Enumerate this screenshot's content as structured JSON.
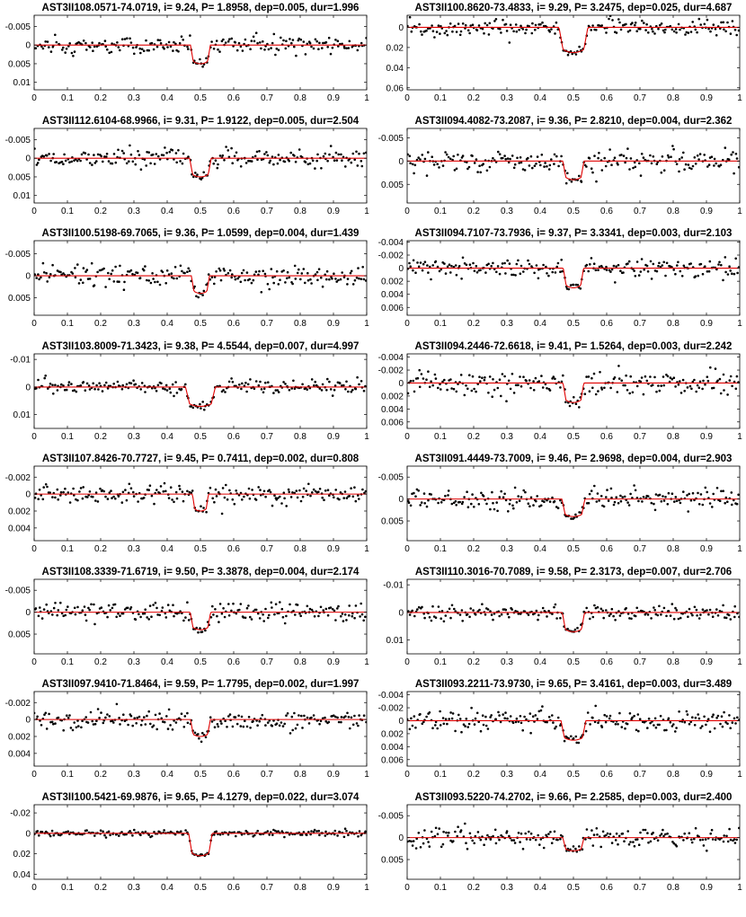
{
  "figure": {
    "columns": 2,
    "rows": 8
  },
  "chart_data": [
    {
      "type": "scatter",
      "title": "AST3II108.0571-74.0719, i= 9.24, P= 1.8958, dep=0.005, dur=1.996",
      "depth": 0.005,
      "duration": 1.996,
      "noise": 0.0012,
      "seed": 11,
      "xlim": [
        0,
        1
      ],
      "ylim": [
        -0.008,
        0.012
      ],
      "y_reversed": true,
      "y_ticks": [
        "-0.005",
        "0",
        "0.005",
        "0.01"
      ],
      "y_tick_values": [
        -0.005,
        0,
        0.005,
        0.01
      ],
      "x_ticks": [
        "0",
        "0.1",
        "0.2",
        "0.3",
        "0.4",
        "0.5",
        "0.6",
        "0.7",
        "0.8",
        "0.9",
        "1"
      ],
      "model_color": "#e00000",
      "point_color": "#000000"
    },
    {
      "type": "scatter",
      "title": "AST3II100.8620-73.4833, i= 9.29, P= 3.2475, dep=0.025, dur=4.687",
      "depth": 0.025,
      "duration": 4.687,
      "noise": 0.004,
      "seed": 12,
      "xlim": [
        0,
        1
      ],
      "ylim": [
        -0.012,
        0.062
      ],
      "y_reversed": true,
      "y_ticks": [
        "0",
        "0.02",
        "0.04",
        "0.06"
      ],
      "y_tick_values": [
        0,
        0.02,
        0.04,
        0.06
      ],
      "x_ticks": [
        "0",
        "0.1",
        "0.2",
        "0.3",
        "0.4",
        "0.5",
        "0.6",
        "0.7",
        "0.8",
        "0.9",
        "1"
      ],
      "model_color": "#e00000",
      "point_color": "#000000"
    },
    {
      "type": "scatter",
      "title": "AST3II112.6104-68.9966, i= 9.31, P= 1.9122, dep=0.005, dur=2.504",
      "depth": 0.005,
      "duration": 2.504,
      "noise": 0.0012,
      "seed": 13,
      "xlim": [
        0,
        1
      ],
      "ylim": [
        -0.008,
        0.012
      ],
      "y_reversed": true,
      "y_ticks": [
        "-0.005",
        "0",
        "0.005",
        "0.01"
      ],
      "y_tick_values": [
        -0.005,
        0,
        0.005,
        0.01
      ],
      "x_ticks": [
        "0",
        "0.1",
        "0.2",
        "0.3",
        "0.4",
        "0.5",
        "0.6",
        "0.7",
        "0.8",
        "0.9",
        "1"
      ],
      "model_color": "#e00000",
      "point_color": "#000000"
    },
    {
      "type": "scatter",
      "title": "AST3II094.4082-73.2087, i= 9.36, P= 2.8210, dep=0.004, dur=2.362",
      "depth": 0.004,
      "duration": 2.362,
      "noise": 0.0012,
      "seed": 14,
      "xlim": [
        0,
        1
      ],
      "ylim": [
        -0.007,
        0.009
      ],
      "y_reversed": true,
      "y_ticks": [
        "-0.005",
        "0",
        "0.005"
      ],
      "y_tick_values": [
        -0.005,
        0,
        0.005
      ],
      "x_ticks": [
        "0",
        "0.1",
        "0.2",
        "0.3",
        "0.4",
        "0.5",
        "0.6",
        "0.7",
        "0.8",
        "0.9",
        "1"
      ],
      "model_color": "#e00000",
      "point_color": "#000000"
    },
    {
      "type": "scatter",
      "title": "AST3II100.5198-69.7065, i= 9.36, P= 1.0599, dep=0.004, dur=1.439",
      "depth": 0.004,
      "duration": 1.439,
      "noise": 0.0012,
      "seed": 15,
      "xlim": [
        0,
        1
      ],
      "ylim": [
        -0.008,
        0.009
      ],
      "y_reversed": true,
      "y_ticks": [
        "-0.005",
        "0",
        "0.005"
      ],
      "y_tick_values": [
        -0.005,
        0,
        0.005
      ],
      "x_ticks": [
        "0",
        "0.1",
        "0.2",
        "0.3",
        "0.4",
        "0.5",
        "0.6",
        "0.7",
        "0.8",
        "0.9",
        "1"
      ],
      "model_color": "#e00000",
      "point_color": "#000000"
    },
    {
      "type": "scatter",
      "title": "AST3II094.7107-73.7936, i= 9.37, P= 3.3341, dep=0.003, dur=2.103",
      "depth": 0.003,
      "duration": 2.103,
      "noise": 0.0007,
      "seed": 16,
      "xlim": [
        0,
        1
      ],
      "ylim": [
        -0.0042,
        0.0072
      ],
      "y_reversed": true,
      "y_ticks": [
        "-0.004",
        "-0.002",
        "0",
        "0.002",
        "0.004",
        "0.006"
      ],
      "y_tick_values": [
        -0.004,
        -0.002,
        0,
        0.002,
        0.004,
        0.006
      ],
      "x_ticks": [
        "0",
        "0.1",
        "0.2",
        "0.3",
        "0.4",
        "0.5",
        "0.6",
        "0.7",
        "0.8",
        "0.9",
        "1"
      ],
      "model_color": "#e00000",
      "point_color": "#000000"
    },
    {
      "type": "scatter",
      "title": "AST3II103.8009-71.3423, i= 9.38, P= 4.5544, dep=0.007, dur=4.997",
      "depth": 0.007,
      "duration": 4.997,
      "noise": 0.0012,
      "seed": 17,
      "xlim": [
        0,
        1
      ],
      "ylim": [
        -0.012,
        0.015
      ],
      "y_reversed": true,
      "y_ticks": [
        "-0.01",
        "0",
        "0.01"
      ],
      "y_tick_values": [
        -0.01,
        0,
        0.01
      ],
      "x_ticks": [
        "0",
        "0.1",
        "0.2",
        "0.3",
        "0.4",
        "0.5",
        "0.6",
        "0.7",
        "0.8",
        "0.9",
        "1"
      ],
      "model_color": "#e00000",
      "point_color": "#000000"
    },
    {
      "type": "scatter",
      "title": "AST3II094.2446-72.6618, i= 9.41, P= 1.5264, dep=0.003, dur=2.242",
      "depth": 0.003,
      "duration": 2.242,
      "noise": 0.0009,
      "seed": 18,
      "xlim": [
        0,
        1
      ],
      "ylim": [
        -0.0045,
        0.007
      ],
      "y_reversed": true,
      "y_ticks": [
        "-0.004",
        "-0.002",
        "0",
        "0.002",
        "0.004",
        "0.006"
      ],
      "y_tick_values": [
        -0.004,
        -0.002,
        0,
        0.002,
        0.004,
        0.006
      ],
      "x_ticks": [
        "0",
        "0.1",
        "0.2",
        "0.3",
        "0.4",
        "0.5",
        "0.6",
        "0.7",
        "0.8",
        "0.9",
        "1"
      ],
      "model_color": "#e00000",
      "point_color": "#000000"
    },
    {
      "type": "scatter",
      "title": "AST3II107.8426-70.7727, i= 9.45, P= 0.7411, dep=0.002, dur=0.808",
      "depth": 0.002,
      "duration": 0.808,
      "noise": 0.0006,
      "seed": 19,
      "xlim": [
        0,
        1
      ],
      "ylim": [
        -0.0033,
        0.0055
      ],
      "y_reversed": true,
      "y_ticks": [
        "-0.002",
        "0",
        "0.002",
        "0.004"
      ],
      "y_tick_values": [
        -0.002,
        0,
        0.002,
        0.004
      ],
      "x_ticks": [
        "0",
        "0.1",
        "0.2",
        "0.3",
        "0.4",
        "0.5",
        "0.6",
        "0.7",
        "0.8",
        "0.9",
        "1"
      ],
      "model_color": "#e00000",
      "point_color": "#000000"
    },
    {
      "type": "scatter",
      "title": "AST3II091.4449-73.7009, i= 9.46, P= 2.9698, dep=0.004, dur=2.903",
      "depth": 0.004,
      "duration": 2.903,
      "noise": 0.0011,
      "seed": 20,
      "xlim": [
        0,
        1
      ],
      "ylim": [
        -0.0075,
        0.0095
      ],
      "y_reversed": true,
      "y_ticks": [
        "-0.005",
        "0",
        "0.005"
      ],
      "y_tick_values": [
        -0.005,
        0,
        0.005
      ],
      "x_ticks": [
        "0",
        "0.1",
        "0.2",
        "0.3",
        "0.4",
        "0.5",
        "0.6",
        "0.7",
        "0.8",
        "0.9",
        "1"
      ],
      "model_color": "#e00000",
      "point_color": "#000000"
    },
    {
      "type": "scatter",
      "title": "AST3II108.3339-71.6719, i= 9.50, P= 3.3878, dep=0.004, dur=2.174",
      "depth": 0.004,
      "duration": 2.174,
      "noise": 0.0011,
      "seed": 21,
      "xlim": [
        0,
        1
      ],
      "ylim": [
        -0.0075,
        0.0095
      ],
      "y_reversed": true,
      "y_ticks": [
        "-0.005",
        "0",
        "0.005"
      ],
      "y_tick_values": [
        -0.005,
        0,
        0.005
      ],
      "x_ticks": [
        "0",
        "0.1",
        "0.2",
        "0.3",
        "0.4",
        "0.5",
        "0.6",
        "0.7",
        "0.8",
        "0.9",
        "1"
      ],
      "model_color": "#e00000",
      "point_color": "#000000"
    },
    {
      "type": "scatter",
      "title": "AST3II110.3016-70.7089, i= 9.58, P= 2.3173, dep=0.007, dur=2.706",
      "depth": 0.007,
      "duration": 2.706,
      "noise": 0.0013,
      "seed": 22,
      "xlim": [
        0,
        1
      ],
      "ylim": [
        -0.012,
        0.015
      ],
      "y_reversed": true,
      "y_ticks": [
        "-0.01",
        "0",
        "0.01"
      ],
      "y_tick_values": [
        -0.01,
        0,
        0.01
      ],
      "x_ticks": [
        "0",
        "0.1",
        "0.2",
        "0.3",
        "0.4",
        "0.5",
        "0.6",
        "0.7",
        "0.8",
        "0.9",
        "1"
      ],
      "model_color": "#e00000",
      "point_color": "#000000"
    },
    {
      "type": "scatter",
      "title": "AST3II097.9410-71.8464, i= 9.59, P= 1.7795, dep=0.002, dur=1.997",
      "depth": 0.002,
      "duration": 1.997,
      "noise": 0.0006,
      "seed": 23,
      "xlim": [
        0,
        1
      ],
      "ylim": [
        -0.0033,
        0.0055
      ],
      "y_reversed": true,
      "y_ticks": [
        "-0.002",
        "0",
        "0.002",
        "0.004"
      ],
      "y_tick_values": [
        -0.002,
        0,
        0.002,
        0.004
      ],
      "x_ticks": [
        "0",
        "0.1",
        "0.2",
        "0.3",
        "0.4",
        "0.5",
        "0.6",
        "0.7",
        "0.8",
        "0.9",
        "1"
      ],
      "model_color": "#e00000",
      "point_color": "#000000"
    },
    {
      "type": "scatter",
      "title": "AST3II093.2211-73.9730, i= 9.65, P= 3.4161, dep=0.003, dur=3.489",
      "depth": 0.003,
      "duration": 3.489,
      "noise": 0.0008,
      "seed": 24,
      "xlim": [
        0,
        1
      ],
      "ylim": [
        -0.0045,
        0.007
      ],
      "y_reversed": true,
      "y_ticks": [
        "-0.004",
        "-0.002",
        "0",
        "0.002",
        "0.004",
        "0.006"
      ],
      "y_tick_values": [
        -0.004,
        -0.002,
        0,
        0.002,
        0.004,
        0.006
      ],
      "x_ticks": [
        "0",
        "0.1",
        "0.2",
        "0.3",
        "0.4",
        "0.5",
        "0.6",
        "0.7",
        "0.8",
        "0.9",
        "1"
      ],
      "model_color": "#e00000",
      "point_color": "#000000"
    },
    {
      "type": "scatter",
      "title": "AST3II100.5421-69.9876, i= 9.65, P= 4.1279, dep=0.022, dur=3.074",
      "depth": 0.022,
      "duration": 3.074,
      "noise": 0.0015,
      "seed": 25,
      "xlim": [
        0,
        1
      ],
      "ylim": [
        -0.028,
        0.045
      ],
      "y_reversed": true,
      "y_ticks": [
        "-0.02",
        "0",
        "0.02",
        "0.04"
      ],
      "y_tick_values": [
        -0.02,
        0,
        0.02,
        0.04
      ],
      "x_ticks": [
        "0",
        "0.1",
        "0.2",
        "0.3",
        "0.4",
        "0.5",
        "0.6",
        "0.7",
        "0.8",
        "0.9",
        "1"
      ],
      "model_color": "#e00000",
      "point_color": "#000000"
    },
    {
      "type": "scatter",
      "title": "AST3II093.5220-74.2702, i= 9.66, P= 2.2585, dep=0.003, dur=2.400",
      "depth": 0.003,
      "duration": 2.4,
      "noise": 0.0012,
      "seed": 26,
      "xlim": [
        0,
        1
      ],
      "ylim": [
        -0.0075,
        0.0095
      ],
      "y_reversed": true,
      "y_ticks": [
        "-0.005",
        "0",
        "0.005"
      ],
      "y_tick_values": [
        -0.005,
        0,
        0.005
      ],
      "x_ticks": [
        "0",
        "0.1",
        "0.2",
        "0.3",
        "0.4",
        "0.5",
        "0.6",
        "0.7",
        "0.8",
        "0.9",
        "1"
      ],
      "model_color": "#e00000",
      "point_color": "#000000"
    }
  ]
}
